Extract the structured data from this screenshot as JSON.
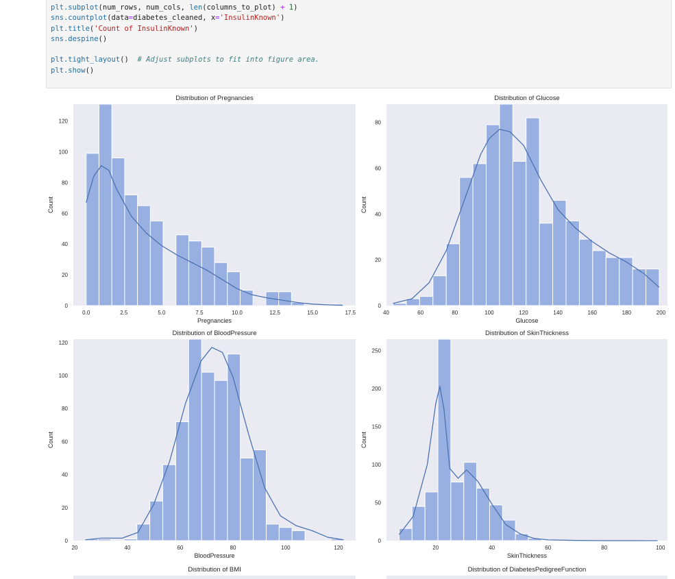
{
  "code_cell": {
    "lines": [
      [
        {
          "t": "fn",
          "v": "plt.subplot"
        },
        {
          "t": "p",
          "v": "(num_rows, num_cols, "
        },
        {
          "t": "fn",
          "v": "len"
        },
        {
          "t": "p",
          "v": "(columns_to_plot) "
        },
        {
          "t": "op",
          "v": "+"
        },
        {
          "t": "p",
          "v": " "
        },
        {
          "t": "num",
          "v": "1"
        },
        {
          "t": "p",
          "v": ")"
        }
      ],
      [
        {
          "t": "fn",
          "v": "sns.countplot"
        },
        {
          "t": "p",
          "v": "(data"
        },
        {
          "t": "op",
          "v": "="
        },
        {
          "t": "p",
          "v": "diabetes_cleaned, x"
        },
        {
          "t": "op",
          "v": "="
        },
        {
          "t": "str",
          "v": "'InsulinKnown'"
        },
        {
          "t": "p",
          "v": ")"
        }
      ],
      [
        {
          "t": "fn",
          "v": "plt.title"
        },
        {
          "t": "p",
          "v": "("
        },
        {
          "t": "str",
          "v": "'Count of InsulinKnown'"
        },
        {
          "t": "p",
          "v": ")"
        }
      ],
      [
        {
          "t": "fn",
          "v": "sns.despine"
        },
        {
          "t": "p",
          "v": "()"
        }
      ],
      [],
      [
        {
          "t": "fn",
          "v": "plt.tight_layout"
        },
        {
          "t": "p",
          "v": "()  "
        },
        {
          "t": "cmt",
          "v": "# Adjust subplots to fit into figure area."
        }
      ],
      [
        {
          "t": "fn",
          "v": "plt.show"
        },
        {
          "t": "p",
          "v": "()"
        }
      ]
    ]
  },
  "colors": {
    "axes_bg": "#eaeaf2",
    "bar_fill": "#97afe1",
    "bar_edge": "#ffffff",
    "kde_line": "#4c72b0"
  },
  "chart_data": [
    {
      "type": "bar",
      "title": "Distribution of Pregnancies",
      "xlabel": "Pregnancies",
      "ylabel": "Count",
      "xlim": [
        -0.85,
        17.85
      ],
      "ylim": [
        0,
        131
      ],
      "xticks": [
        0,
        2.5,
        5,
        7.5,
        10,
        12.5,
        15,
        17.5
      ],
      "xtick_labels": [
        "0.0",
        "2.5",
        "5.0",
        "7.5",
        "10.0",
        "12.5",
        "15.0",
        "17.5"
      ],
      "yticks": [
        0,
        20,
        40,
        60,
        80,
        100,
        120
      ],
      "bin_edges": [
        0,
        0.85,
        1.7,
        2.55,
        3.4,
        4.25,
        5.1,
        5.95,
        6.8,
        7.65,
        8.5,
        9.35,
        10.2,
        11.05,
        11.9,
        12.75,
        13.6,
        14.45,
        15.3,
        16.15,
        17
      ],
      "values": [
        99,
        131,
        96,
        72,
        65,
        55,
        0,
        46,
        42,
        38,
        28,
        22,
        10,
        0,
        9,
        9,
        2,
        0,
        0,
        1
      ],
      "kde_x": [
        0,
        0.5,
        1,
        1.5,
        2,
        3,
        4,
        5,
        6,
        7,
        8,
        9,
        10,
        11,
        12,
        13,
        14,
        15,
        16,
        17
      ],
      "kde_y": [
        67,
        84,
        91,
        88,
        76,
        58,
        47,
        39,
        33,
        28,
        23,
        17,
        11,
        7,
        5,
        3.5,
        2,
        1,
        0.5,
        0.2
      ]
    },
    {
      "type": "bar",
      "title": "Distribution of Glucose",
      "xlabel": "Glucose",
      "ylabel": "Count",
      "xlim": [
        40.2,
        203.8
      ],
      "ylim": [
        0,
        88
      ],
      "xticks": [
        40,
        60,
        80,
        100,
        120,
        140,
        160,
        180,
        200
      ],
      "xtick_labels": [
        "40",
        "60",
        "80",
        "100",
        "120",
        "140",
        "160",
        "180",
        "200"
      ],
      "yticks": [
        0,
        20,
        40,
        60,
        80
      ],
      "bin_edges": [
        44,
        51.75,
        59.5,
        67.25,
        75,
        82.75,
        90.5,
        98.25,
        106,
        113.75,
        121.5,
        129.25,
        137,
        144.75,
        152.5,
        160.25,
        168,
        175.75,
        183.5,
        191.25,
        199
      ],
      "values": [
        1,
        3,
        4,
        13,
        27,
        56,
        62,
        79,
        88,
        63,
        82,
        36,
        46,
        37,
        29,
        24,
        21,
        21,
        16,
        16
      ],
      "kde_x": [
        44,
        55,
        65,
        75,
        85,
        95,
        100,
        106,
        112,
        120,
        130,
        140,
        150,
        160,
        170,
        180,
        190,
        199
      ],
      "kde_y": [
        1,
        3,
        10,
        24,
        45,
        66,
        73,
        77,
        76,
        70,
        55,
        42,
        34,
        28,
        23,
        19,
        14,
        8
      ]
    },
    {
      "type": "bar",
      "title": "Distribution of BloodPressure",
      "xlabel": "BloodPressure",
      "ylabel": "Count",
      "xlim": [
        19.5,
        126.5
      ],
      "ylim": [
        0,
        122
      ],
      "xticks": [
        20,
        40,
        60,
        80,
        100,
        120
      ],
      "xtick_labels": [
        "20",
        "40",
        "60",
        "80",
        "100",
        "120"
      ],
      "yticks": [
        0,
        20,
        40,
        60,
        80,
        100,
        120
      ],
      "bin_edges": [
        24,
        28.9,
        33.8,
        38.7,
        43.6,
        48.5,
        53.4,
        58.3,
        63.2,
        68.1,
        73,
        77.9,
        82.8,
        87.7,
        92.6,
        97.5,
        102.4,
        107.3,
        112.2,
        117.1,
        122
      ],
      "values": [
        1,
        1,
        0,
        1,
        10,
        24,
        46,
        72,
        122,
        102,
        97,
        113,
        50,
        55,
        10,
        8,
        6,
        0,
        0,
        1
      ],
      "kde_x": [
        24,
        30,
        38,
        44,
        50,
        56,
        62,
        68,
        72,
        76,
        80,
        86,
        92,
        98,
        104,
        110,
        116,
        122
      ],
      "kde_y": [
        0.5,
        1.5,
        1.5,
        5,
        22,
        48,
        83,
        109,
        117,
        114,
        99,
        64,
        32,
        15,
        9,
        6,
        2,
        0.5
      ]
    },
    {
      "type": "bar",
      "title": "Distribution of SkinThickness",
      "xlabel": "SkinThickness",
      "ylabel": "Count",
      "xlim": [
        2.5,
        102.5
      ],
      "ylim": [
        0,
        265
      ],
      "xticks": [
        20,
        40,
        60,
        80,
        100
      ],
      "xtick_labels": [
        "20",
        "40",
        "60",
        "80",
        "100"
      ],
      "yticks": [
        0,
        50,
        100,
        150,
        200,
        250
      ],
      "bin_edges": [
        7,
        11.6,
        16.2,
        20.8,
        25.4,
        30,
        34.6,
        39.2,
        43.8,
        48.4,
        53,
        57.6,
        62.2,
        66.8,
        71.4,
        76,
        80.6,
        85.2,
        89.8,
        94.4,
        99
      ],
      "values": [
        16,
        45,
        64,
        265,
        77,
        103,
        69,
        47,
        27,
        9,
        3,
        1,
        0,
        0,
        0,
        0,
        0,
        0,
        0,
        1
      ],
      "kde_x": [
        7,
        12,
        17,
        20,
        21.5,
        23,
        25,
        28,
        31,
        35,
        40,
        45,
        50,
        55,
        60,
        70,
        80,
        99
      ],
      "kde_y": [
        8,
        32,
        100,
        180,
        203,
        172,
        95,
        82,
        93,
        78,
        48,
        21,
        9,
        3,
        1,
        0.3,
        0,
        0
      ]
    }
  ],
  "bottom_row_titles": {
    "left": "Distribution of BMI",
    "right": "Distribution of DiabetesPedigreeFunction"
  }
}
